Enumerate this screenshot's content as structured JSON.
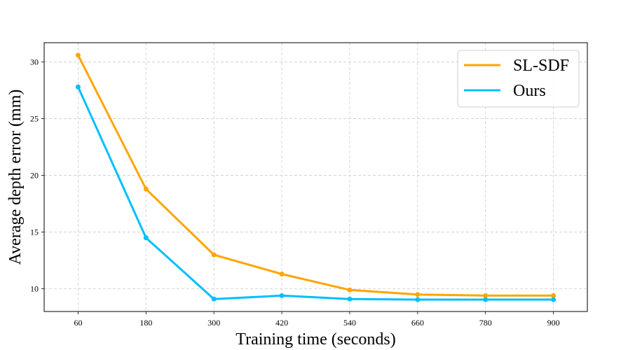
{
  "chart_data": {
    "type": "line",
    "title": "",
    "xlabel": "Training time (seconds)",
    "ylabel": "Average depth error (mm)",
    "x": [
      60,
      180,
      300,
      420,
      540,
      660,
      780,
      900
    ],
    "xticks": [
      "60",
      "180",
      "300",
      "420",
      "540",
      "660",
      "780",
      "900"
    ],
    "yticks": [
      10,
      15,
      20,
      25,
      30
    ],
    "ylim": [
      8.0,
      31.7
    ],
    "xlim": [
      0,
      960
    ],
    "grid": true,
    "legend_position": "top-right",
    "series": [
      {
        "name": "SL-SDF",
        "color": "#FFA500",
        "values": [
          30.6,
          18.8,
          13.0,
          11.3,
          9.9,
          9.5,
          9.4,
          9.4
        ]
      },
      {
        "name": "Ours",
        "color": "#00BFFF",
        "values": [
          27.8,
          14.5,
          9.1,
          9.4,
          9.1,
          9.05,
          9.05,
          9.05
        ]
      }
    ]
  }
}
